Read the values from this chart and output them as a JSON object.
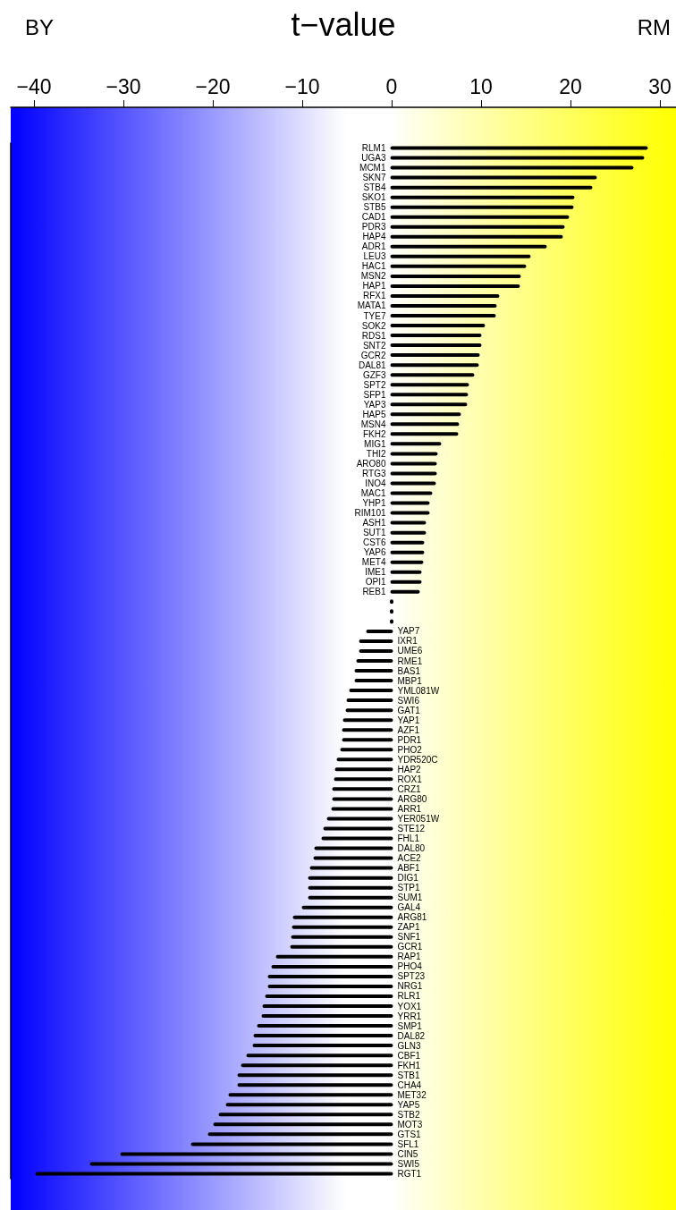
{
  "chart_data": {
    "type": "bar",
    "orientation": "horizontal",
    "xlabel": "t−value",
    "annotations": [
      "BY",
      "RM"
    ],
    "categories": [
      "RLM1",
      "UGA3",
      "MCM1",
      "SKN7",
      "STB4",
      "SKO1",
      "STB5",
      "CAD1",
      "PDR3",
      "HAP4",
      "ADR1",
      "LEU3",
      "HAC1",
      "MSN2",
      "HAP1",
      "RFX1",
      "MATA1",
      "TYE7",
      "SOK2",
      "RDS1",
      "SNT2",
      "GCR2",
      "DAL81",
      "GZF3",
      "SPT2",
      "SFP1",
      "YAP3",
      "HAP5",
      "MSN4",
      "FKH2",
      "MIG1",
      "THI2",
      "ARO80",
      "RTG3",
      "INO4",
      "MAC1",
      "YHP1",
      "RIM101",
      "ASH1",
      "SUT1",
      "CST6",
      "YAP6",
      "MET4",
      "IME1",
      "OPI1",
      "REB1",
      null,
      null,
      null,
      "YAP7",
      "IXR1",
      "UME6",
      "RME1",
      "BAS1",
      "MBP1",
      "YML081W",
      "SWI6",
      "GAT1",
      "YAP1",
      "AZF1",
      "PDR1",
      "PHO2",
      "YDR520C",
      "HAP2",
      "ROX1",
      "CRZ1",
      "ARG80",
      "ARR1",
      "YER051W",
      "STE12",
      "FHL1",
      "DAL80",
      "ACE2",
      "ABF1",
      "DIG1",
      "STP1",
      "SUM1",
      "GAL4",
      "ARG81",
      "ZAP1",
      "SNF1",
      "GCR1",
      "RAP1",
      "PHO4",
      "SPT23",
      "NRG1",
      "RLR1",
      "YOX1",
      "YRR1",
      "SMP1",
      "DAL82",
      "GLN3",
      "CBF1",
      "FKH1",
      "STB1",
      "CHA4",
      "MET32",
      "YAP5",
      "STB2",
      "MOT3",
      "GTS1",
      "SFL1",
      "CIN5",
      "SWI5",
      "RGT1"
    ],
    "values": [
      28.5,
      28.1,
      26.9,
      22.8,
      22.3,
      20.3,
      20.2,
      19.7,
      19.2,
      19.0,
      17.2,
      15.4,
      14.9,
      14.3,
      14.2,
      11.9,
      11.6,
      11.5,
      10.3,
      9.9,
      9.9,
      9.7,
      9.6,
      9.1,
      8.5,
      8.4,
      8.3,
      7.6,
      7.4,
      7.3,
      5.4,
      5.0,
      4.9,
      4.9,
      4.8,
      4.4,
      4.1,
      4.1,
      3.7,
      3.7,
      3.5,
      3.5,
      3.4,
      3.2,
      3.2,
      3.0,
      0,
      0,
      0,
      -2.7,
      -3.5,
      -3.5,
      -3.8,
      -4.0,
      -4.0,
      -4.6,
      -4.9,
      -5.0,
      -5.3,
      -5.4,
      -5.4,
      -5.6,
      -6.0,
      -6.2,
      -6.3,
      -6.5,
      -6.5,
      -6.6,
      -7.1,
      -7.5,
      -7.7,
      -8.5,
      -8.6,
      -9.0,
      -9.2,
      -9.2,
      -9.2,
      -9.9,
      -10.9,
      -11.0,
      -11.1,
      -11.2,
      -12.8,
      -13.3,
      -13.7,
      -13.7,
      -14.0,
      -14.3,
      -14.4,
      -14.9,
      -15.3,
      -15.4,
      -16.1,
      -16.7,
      -17.1,
      -17.1,
      -18.1,
      -18.4,
      -19.2,
      -19.8,
      -20.4,
      -22.3,
      -30.2,
      -33.6,
      -39.7
    ],
    "color": "#000000",
    "xlim": [
      -42.6,
      31.8
    ],
    "xticks": [
      {
        "value": -40,
        "label": "−40"
      },
      {
        "value": -30,
        "label": "−30"
      },
      {
        "value": -20,
        "label": "−20"
      },
      {
        "value": -10,
        "label": "−10"
      },
      0,
      10,
      20,
      30
    ],
    "bands": [
      {
        "axis": "x",
        "from": -42.6,
        "to": 0,
        "color": "#0000ff"
      },
      {
        "axis": "x",
        "from": 0,
        "to": 31.8,
        "color": "#ffff00"
      }
    ],
    "grid": false
  }
}
